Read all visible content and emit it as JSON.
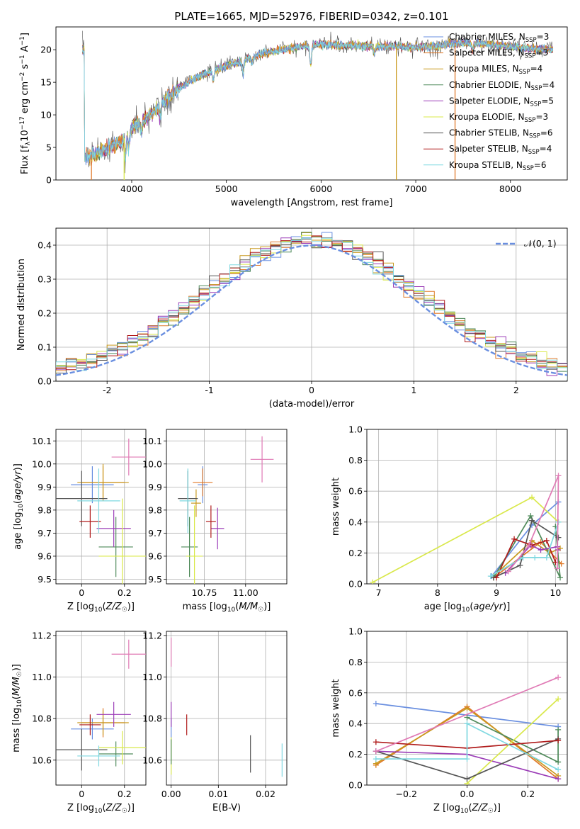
{
  "title": "PLATE=1665, MJD=52976, FIBERID=0342, z=0.101",
  "colors": {
    "Chabrier MILES": "#6a8fe0",
    "Salpeter MILES": "#e07a2a",
    "Kroupa MILES": "#c9991e",
    "Chabrier ELODIE": "#4f8a5a",
    "Salpeter ELODIE": "#9b3cb7",
    "Kroupa ELODIE": "#d9e84a",
    "Chabrier STELIB": "#555555",
    "Salpeter STELIB": "#b01b1b",
    "Kroupa STELIB": "#7fd8e0",
    "pink": "#e07ab5"
  },
  "chart_data": [
    {
      "id": "spectrum",
      "type": "line",
      "xlabel": "wavelength [Angstrom, rest frame]",
      "ylabel": "Flux [f_λ10^-17 erg cm^-2 s^-1 A^-1]",
      "xlim": [
        3200,
        8600
      ],
      "ylim": [
        0,
        23.5
      ],
      "xticks": [
        4000,
        5000,
        6000,
        7000,
        8000
      ],
      "yticks": [
        0,
        5,
        10,
        15,
        20
      ],
      "legend_position": "right",
      "legend": [
        {
          "label": "Chabrier MILES, N",
          "sub": "SSP",
          "suffix": "=3"
        },
        {
          "label": "Salpeter MILES, N",
          "sub": "SSP",
          "suffix": "=3"
        },
        {
          "label": "Kroupa MILES, N",
          "sub": "SSP",
          "suffix": "=4"
        },
        {
          "label": "Chabrier ELODIE, N",
          "sub": "SSP",
          "suffix": "=4"
        },
        {
          "label": "Salpeter ELODIE, N",
          "sub": "SSP",
          "suffix": "=5"
        },
        {
          "label": "Kroupa ELODIE, N",
          "sub": "SSP",
          "suffix": "=3"
        },
        {
          "label": "Chabrier STELIB, N",
          "sub": "SSP",
          "suffix": "=6"
        },
        {
          "label": "Salpeter STELIB, N",
          "sub": "SSP",
          "suffix": "=4"
        },
        {
          "label": "Kroupa STELIB, N",
          "sub": "SSP",
          "suffix": "=6"
        }
      ],
      "continuum": [
        [
          3500,
          3.5
        ],
        [
          3700,
          4.5
        ],
        [
          3900,
          6.0
        ],
        [
          4000,
          8.0
        ],
        [
          4200,
          10.0
        ],
        [
          4400,
          13.0
        ],
        [
          4600,
          15.0
        ],
        [
          4800,
          16.5
        ],
        [
          5000,
          17.5
        ],
        [
          5200,
          18.5
        ],
        [
          5400,
          19.5
        ],
        [
          5600,
          20.0
        ],
        [
          5800,
          20.5
        ],
        [
          6000,
          20.8
        ],
        [
          6200,
          20.7
        ],
        [
          6400,
          20.6
        ],
        [
          6600,
          20.5
        ],
        [
          6800,
          20.5
        ],
        [
          7000,
          20.4
        ],
        [
          7200,
          20.5
        ],
        [
          7400,
          21.0
        ],
        [
          7600,
          21.0
        ],
        [
          7800,
          20.8
        ],
        [
          8000,
          20.5
        ],
        [
          8200,
          20.2
        ],
        [
          8400,
          20.0
        ]
      ],
      "drops": [
        {
          "x": 3920,
          "color": "Kroupa ELODIE"
        },
        {
          "x": 6795,
          "color": "Kroupa MILES"
        },
        {
          "x": 7415,
          "color": "Salpeter MILES"
        },
        {
          "x": 3575,
          "color": "Salpeter MILES"
        }
      ]
    },
    {
      "id": "residuals",
      "type": "histogram",
      "xlabel": "(data-model)/error",
      "ylabel": "Normed distribution",
      "xlim": [
        -2.5,
        2.5
      ],
      "ylim": [
        0,
        0.45
      ],
      "xticks": [
        -2,
        -1,
        0,
        1,
        2
      ],
      "yticks": [
        0.0,
        0.1,
        0.2,
        0.3,
        0.4
      ],
      "grid": true,
      "legend_position": "top-right",
      "reference_label": "𝒩(0, 1)",
      "bin_width": 0.1
    },
    {
      "id": "age_vs_Z",
      "type": "errorbar",
      "xlabel": "Z [log10(Z/Z☉)]",
      "ylabel": "age [log10(age/yr)]",
      "xlim": [
        -0.12,
        0.3
      ],
      "ylim": [
        9.48,
        10.15
      ],
      "xticks": [
        0.0,
        0.2
      ],
      "yticks": [
        9.5,
        9.6,
        9.7,
        9.8,
        9.9,
        10.0,
        10.1
      ],
      "grid": true,
      "points": [
        {
          "series": "Chabrier MILES",
          "x": 0.05,
          "xerr": 0.1,
          "y": 9.91,
          "yerr": 0.08
        },
        {
          "series": "Salpeter MILES",
          "x": 0.1,
          "xerr": 0.1,
          "y": 9.92,
          "yerr": 0.07
        },
        {
          "series": "Kroupa MILES",
          "x": 0.1,
          "xerr": 0.12,
          "y": 9.92,
          "yerr": 0.08
        },
        {
          "series": "Chabrier ELODIE",
          "x": 0.16,
          "xerr": 0.08,
          "y": 9.64,
          "yerr": 0.13
        },
        {
          "series": "Salpeter ELODIE",
          "x": 0.15,
          "xerr": 0.08,
          "y": 9.72,
          "yerr": 0.08
        },
        {
          "series": "Kroupa ELODIE",
          "x": 0.19,
          "xerr": 0.11,
          "y": 9.6,
          "yerr": 0.25
        },
        {
          "series": "Chabrier STELIB",
          "x": 0.0,
          "xerr": 0.12,
          "y": 9.85,
          "yerr": 0.12
        },
        {
          "series": "Salpeter STELIB",
          "x": 0.04,
          "xerr": 0.05,
          "y": 9.75,
          "yerr": 0.07
        },
        {
          "series": "Kroupa STELIB",
          "x": 0.08,
          "xerr": 0.1,
          "y": 9.84,
          "yerr": 0.14
        },
        {
          "series": "pink",
          "x": 0.22,
          "xerr": 0.08,
          "y": 10.03,
          "yerr": 0.08
        }
      ]
    },
    {
      "id": "age_vs_mass",
      "type": "errorbar",
      "xlabel": "mass [log10(M/M☉)]",
      "ylabel": "",
      "xlim": [
        10.52,
        11.25
      ],
      "ylim": [
        9.48,
        10.15
      ],
      "xticks": [
        10.5,
        10.75,
        11.0
      ],
      "xticklabels": [
        "10.50",
        "10.75",
        "11.00"
      ],
      "yticks": [
        9.5,
        9.6,
        9.7,
        9.8,
        9.9,
        10.0,
        10.1
      ],
      "grid": true,
      "points": [
        {
          "series": "Chabrier MILES",
          "x": 10.74,
          "xerr": 0.03,
          "y": 9.91,
          "yerr": 0.08
        },
        {
          "series": "Salpeter MILES",
          "x": 10.74,
          "xerr": 0.06,
          "y": 9.92,
          "yerr": 0.06
        },
        {
          "series": "Kroupa MILES",
          "x": 10.7,
          "xerr": 0.03,
          "y": 9.83,
          "yerr": 0.06
        },
        {
          "series": "Chabrier ELODIE",
          "x": 10.66,
          "xerr": 0.05,
          "y": 9.64,
          "yerr": 0.13
        },
        {
          "series": "Salpeter ELODIE",
          "x": 10.83,
          "xerr": 0.04,
          "y": 9.72,
          "yerr": 0.09
        },
        {
          "series": "Kroupa ELODIE",
          "x": 10.69,
          "xerr": 0.05,
          "y": 9.6,
          "yerr": 0.22
        },
        {
          "series": "Chabrier STELIB",
          "x": 10.65,
          "xerr": 0.06,
          "y": 9.85,
          "yerr": 0.12
        },
        {
          "series": "Salpeter STELIB",
          "x": 10.79,
          "xerr": 0.03,
          "y": 9.75,
          "yerr": 0.07
        },
        {
          "series": "Kroupa STELIB",
          "x": 10.65,
          "xerr": 0.05,
          "y": 9.84,
          "yerr": 0.14
        },
        {
          "series": "pink",
          "x": 11.1,
          "xerr": 0.07,
          "y": 10.02,
          "yerr": 0.1
        }
      ]
    },
    {
      "id": "weight_vs_age",
      "type": "line",
      "xlabel": "age [log10(age/yr)]",
      "ylabel": "mass weight",
      "xlim": [
        6.8,
        10.2
      ],
      "ylim": [
        0,
        1.0
      ],
      "xticks": [
        7,
        8,
        9,
        10
      ],
      "yticks": [
        0.0,
        0.2,
        0.4,
        0.6,
        0.8,
        1.0
      ],
      "grid": true,
      "series": [
        {
          "name": "Chabrier MILES",
          "x": [
            8.92,
            9.6,
            10.05
          ],
          "y": [
            0.05,
            0.38,
            0.53
          ]
        },
        {
          "name": "Salpeter MILES",
          "x": [
            8.95,
            9.75,
            10.1
          ],
          "y": [
            0.04,
            0.27,
            0.13
          ]
        },
        {
          "name": "Kroupa MILES",
          "x": [
            8.95,
            9.6,
            9.9,
            10.08
          ],
          "y": [
            0.05,
            0.28,
            0.2,
            0.23
          ]
        },
        {
          "name": "Chabrier ELODIE",
          "x": [
            8.95,
            9.58,
            10.08,
            10.0
          ],
          "y": [
            0.04,
            0.44,
            0.04,
            0.37
          ]
        },
        {
          "name": "Salpeter ELODIE",
          "x": [
            9.15,
            9.58,
            9.75,
            10.03,
            10.04
          ],
          "y": [
            0.07,
            0.25,
            0.22,
            0.24,
            0.22
          ]
        },
        {
          "name": "Kroupa ELODIE",
          "x": [
            6.9,
            9.6,
            10.05
          ],
          "y": [
            0.01,
            0.56,
            0.4
          ]
        },
        {
          "name": "Chabrier STELIB",
          "x": [
            8.95,
            9.4,
            9.6,
            10.05
          ],
          "y": [
            0.04,
            0.12,
            0.41,
            0.3
          ]
        },
        {
          "name": "Salpeter STELIB",
          "x": [
            9.0,
            9.3,
            9.6,
            9.85,
            10.0
          ],
          "y": [
            0.04,
            0.29,
            0.25,
            0.28,
            0.14
          ]
        },
        {
          "name": "Kroupa STELIB",
          "x": [
            8.9,
            9.45,
            9.65,
            9.85,
            10.05
          ],
          "y": [
            0.05,
            0.17,
            0.17,
            0.17,
            0.4
          ]
        },
        {
          "name": "pink",
          "x": [
            9.2,
            9.55,
            10.05,
            10.03
          ],
          "y": [
            0.08,
            0.25,
            0.7,
            0.1
          ]
        }
      ]
    },
    {
      "id": "mass_vs_Z",
      "type": "errorbar",
      "xlabel": "Z [log10(Z/Z☉)]",
      "ylabel": "mass [log10(M/M☉)]",
      "xlim": [
        -0.12,
        0.3
      ],
      "ylim": [
        10.48,
        11.22
      ],
      "xticks": [
        0.0,
        0.2
      ],
      "yticks": [
        10.6,
        10.8,
        11.0,
        11.2
      ],
      "grid": true,
      "points": [
        {
          "series": "Chabrier MILES",
          "x": 0.05,
          "xerr": 0.1,
          "y": 10.75,
          "yerr": 0.05
        },
        {
          "series": "Salpeter MILES",
          "x": 0.1,
          "xerr": 0.1,
          "y": 10.78,
          "yerr": 0.07
        },
        {
          "series": "Kroupa MILES",
          "x": 0.1,
          "xerr": 0.12,
          "y": 10.78,
          "yerr": 0.06
        },
        {
          "series": "Chabrier ELODIE",
          "x": 0.16,
          "xerr": 0.08,
          "y": 10.63,
          "yerr": 0.06
        },
        {
          "series": "Salpeter ELODIE",
          "x": 0.15,
          "xerr": 0.08,
          "y": 10.82,
          "yerr": 0.06
        },
        {
          "series": "Kroupa ELODIE",
          "x": 0.19,
          "xerr": 0.11,
          "y": 10.66,
          "yerr": 0.08
        },
        {
          "series": "Chabrier STELIB",
          "x": 0.0,
          "xerr": 0.12,
          "y": 10.65,
          "yerr": 0.1
        },
        {
          "series": "Salpeter STELIB",
          "x": 0.04,
          "xerr": 0.05,
          "y": 10.77,
          "yerr": 0.05
        },
        {
          "series": "Kroupa STELIB",
          "x": 0.08,
          "xerr": 0.1,
          "y": 10.62,
          "yerr": 0.05
        },
        {
          "series": "pink",
          "x": 0.22,
          "xerr": 0.08,
          "y": 11.11,
          "yerr": 0.07
        }
      ]
    },
    {
      "id": "mass_vs_ebv",
      "type": "errorbar",
      "xlabel": "E(B-V)",
      "ylabel": "",
      "xlim": [
        -0.001,
        0.0245
      ],
      "ylim": [
        10.48,
        11.22
      ],
      "xticks": [
        0.0,
        0.01,
        0.02
      ],
      "xticklabels": [
        "0.00",
        "0.01",
        "0.02"
      ],
      "yticks": [
        10.6,
        10.8,
        11.0,
        11.2
      ],
      "grid": true,
      "points": [
        {
          "series": "Chabrier MILES",
          "x": 0.0,
          "xerr": 0.0,
          "y": 10.75,
          "yerr": 0.05
        },
        {
          "series": "Kroupa ELODIE",
          "x": 0.0,
          "xerr": 0.0,
          "y": 10.62,
          "yerr": 0.09
        },
        {
          "series": "Chabrier ELODIE",
          "x": 0.0,
          "xerr": 0.0,
          "y": 10.64,
          "yerr": 0.06
        },
        {
          "series": "Salpeter ELODIE",
          "x": 0.0,
          "xerr": 0.0,
          "y": 10.82,
          "yerr": 0.06
        },
        {
          "series": "pink",
          "x": 0.0,
          "xerr": 0.0,
          "y": 11.12,
          "yerr": 0.07
        },
        {
          "series": "Salpeter STELIB",
          "x": 0.0033,
          "xerr": 0.0,
          "y": 10.77,
          "yerr": 0.05
        },
        {
          "series": "Chabrier STELIB",
          "x": 0.0168,
          "xerr": 0.0,
          "y": 10.63,
          "yerr": 0.09
        },
        {
          "series": "Kroupa STELIB",
          "x": 0.0235,
          "xerr": 0.0,
          "y": 10.6,
          "yerr": 0.08
        }
      ]
    },
    {
      "id": "weight_vs_Z",
      "type": "line",
      "xlabel": "Z [log10(Z/Z☉)]",
      "ylabel": "mass weight",
      "xlim": [
        -0.33,
        0.33
      ],
      "ylim": [
        0,
        1.0
      ],
      "xticks": [
        -0.2,
        0.0,
        0.2
      ],
      "xticklabels": [
        "−0.2",
        "0.0",
        "0.2"
      ],
      "yticks": [
        0.0,
        0.2,
        0.4,
        0.6,
        0.8,
        1.0
      ],
      "grid": true,
      "series": [
        {
          "name": "Chabrier MILES",
          "x": [
            -0.3,
            0.3
          ],
          "y": [
            0.53,
            0.38
          ]
        },
        {
          "name": "Salpeter MILES",
          "x": [
            -0.3,
            0.0,
            0.3
          ],
          "y": [
            0.13,
            0.51,
            0.04
          ]
        },
        {
          "name": "Kroupa MILES",
          "x": [
            -0.3,
            0.0,
            0.3
          ],
          "y": [
            0.14,
            0.5,
            0.06
          ]
        },
        {
          "name": "Chabrier ELODIE",
          "x": [
            0.0,
            0.3,
            0.3
          ],
          "y": [
            0.44,
            0.15,
            0.36
          ]
        },
        {
          "name": "Salpeter ELODIE",
          "x": [
            -0.3,
            0.0,
            0.3
          ],
          "y": [
            0.22,
            0.2,
            0.04
          ]
        },
        {
          "name": "Kroupa ELODIE",
          "x": [
            0.0,
            0.3
          ],
          "y": [
            0.01,
            0.56
          ]
        },
        {
          "name": "Chabrier STELIB",
          "x": [
            -0.3,
            0.0,
            0.3
          ],
          "y": [
            0.22,
            0.04,
            0.3
          ]
        },
        {
          "name": "Salpeter STELIB",
          "x": [
            -0.3,
            0.0,
            0.3
          ],
          "y": [
            0.28,
            0.24,
            0.29
          ]
        },
        {
          "name": "Kroupa STELIB",
          "x": [
            -0.3,
            0.0,
            0.0,
            0.3
          ],
          "y": [
            0.17,
            0.17,
            0.4,
            0.1
          ]
        },
        {
          "name": "pink",
          "x": [
            -0.3,
            0.3
          ],
          "y": [
            0.22,
            0.7
          ]
        }
      ]
    }
  ]
}
